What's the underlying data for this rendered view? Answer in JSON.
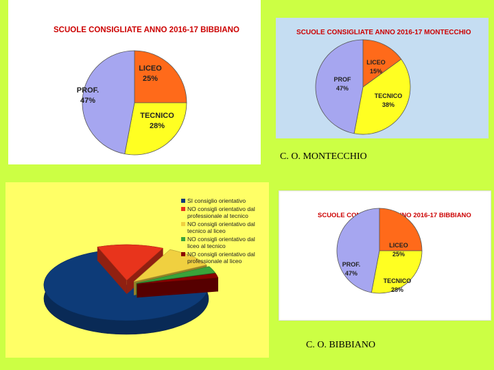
{
  "charts": {
    "bibbiano_top": {
      "title": "SCUOLE CONSIGLIATE   ANNO 2016-17   BIBBIANO"
    },
    "montecchio": {
      "title": "SCUOLE CONSIGLIATE ANNO  2016-17 MONTECCHIO",
      "caption": "C. O. MONTECCHIO"
    },
    "bibbiano_bottom": {
      "title": "SCUOLE CONSIGLIATE    ANNO 2016-17    BIBBIANO",
      "caption": "C. O.  BIBBIANO"
    }
  },
  "colors": {
    "liceo": "#ff6a1a",
    "tecnico": "#ffff22",
    "prof": "#a6a6f0",
    "si": "#0d3b78",
    "no_prof_tec": "#e8341c",
    "no_tec_liceo": "#f0d040",
    "no_liceo_tec": "#3aa33a",
    "no_prof_liceo": "#8b0000"
  },
  "chart_data": [
    {
      "type": "pie",
      "title": "SCUOLE CONSIGLIATE   ANNO 2016-17   BIBBIANO",
      "labels": [
        "LICEO",
        "TECNICO",
        "PROF."
      ],
      "values": [
        25,
        28,
        47
      ],
      "data_labels": [
        "25%",
        "28%",
        "47%"
      ]
    },
    {
      "type": "pie",
      "title": "SCUOLE CONSIGLIATE ANNO  2016-17 MONTECCHIO",
      "labels": [
        "LICEO",
        "TECNICO",
        "PROF"
      ],
      "values": [
        15,
        38,
        47
      ],
      "data_labels": [
        "15%",
        "38%",
        "47%"
      ]
    },
    {
      "type": "pie",
      "title": "",
      "labels": [
        "SI consiglio orientativo",
        "NO consigli orientativo dal professionale al tecnico",
        "NO consigli orientativo dal tecnico al liceo",
        "NO consigli orientativo dal liceo al tecnico",
        "NO consigli orientativo dal professionale al liceo"
      ],
      "values": [
        72,
        13,
        10,
        3,
        2
      ]
    },
    {
      "type": "pie",
      "title": "SCUOLE CONSIGLIATE    ANNO 2016-17    BIBBIANO",
      "labels": [
        "LICEO",
        "TECNICO",
        "PROF."
      ],
      "values": [
        25,
        28,
        47
      ],
      "data_labels": [
        "25%",
        "28%",
        "47%"
      ]
    }
  ]
}
